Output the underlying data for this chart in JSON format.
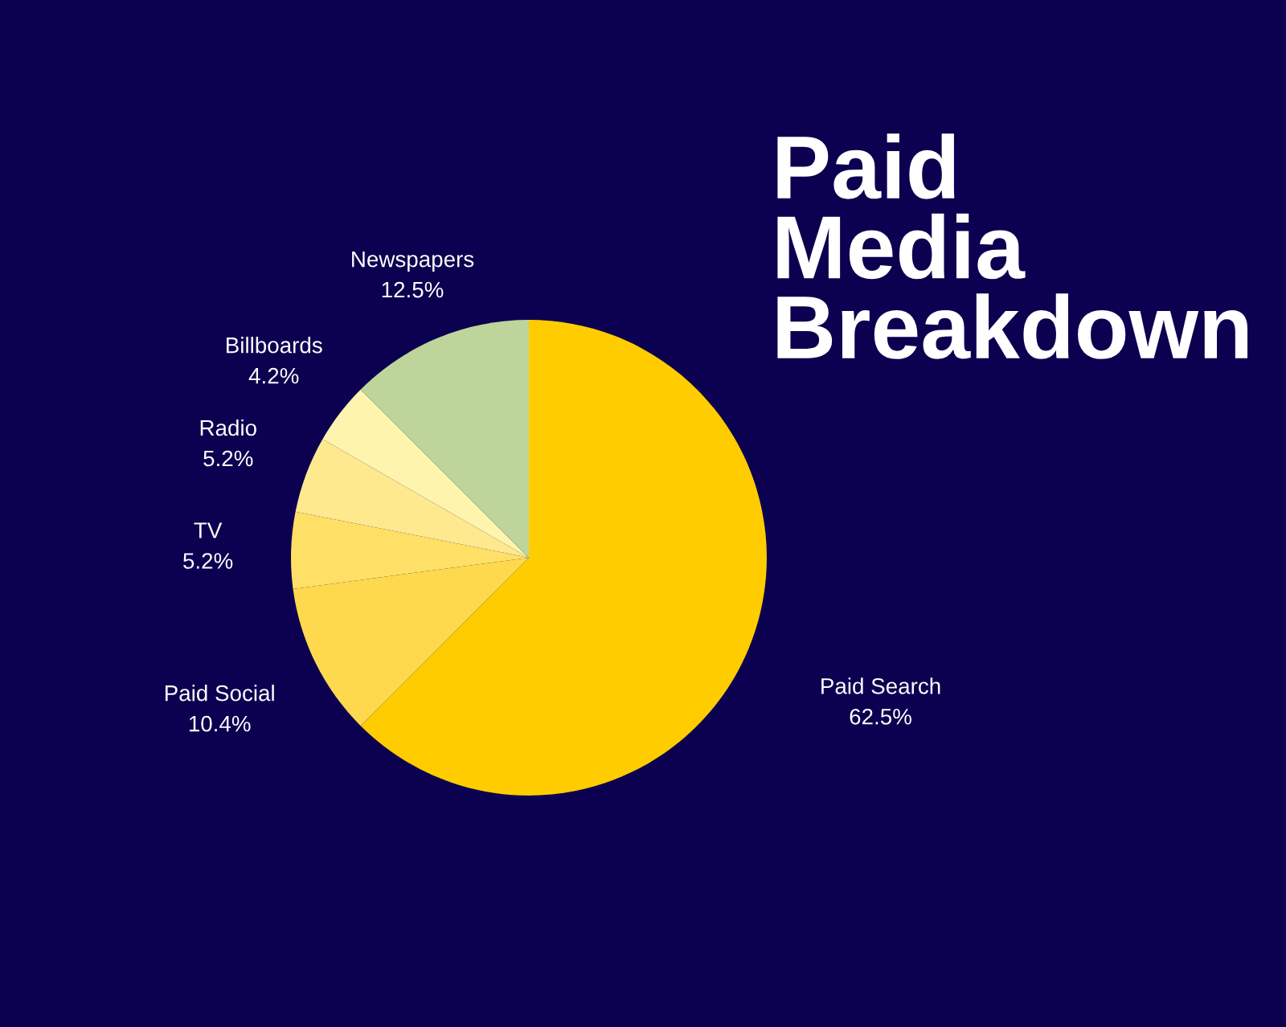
{
  "chart_data": {
    "type": "pie",
    "title": "Paid Media Breakdown",
    "categories": [
      "Paid Search",
      "Paid Social",
      "TV",
      "Radio",
      "Billboards",
      "Newspapers"
    ],
    "values": [
      62.5,
      10.4,
      5.2,
      5.2,
      4.2,
      12.5
    ],
    "colors": [
      "#ffcc00",
      "#ffd94d",
      "#ffe066",
      "#ffe98f",
      "#fff4ad",
      "#bdd59b"
    ],
    "value_labels": [
      "62.5%",
      "10.4%",
      "5.2%",
      "5.2%",
      "4.2%",
      "12.5%"
    ],
    "legend": false
  }
}
